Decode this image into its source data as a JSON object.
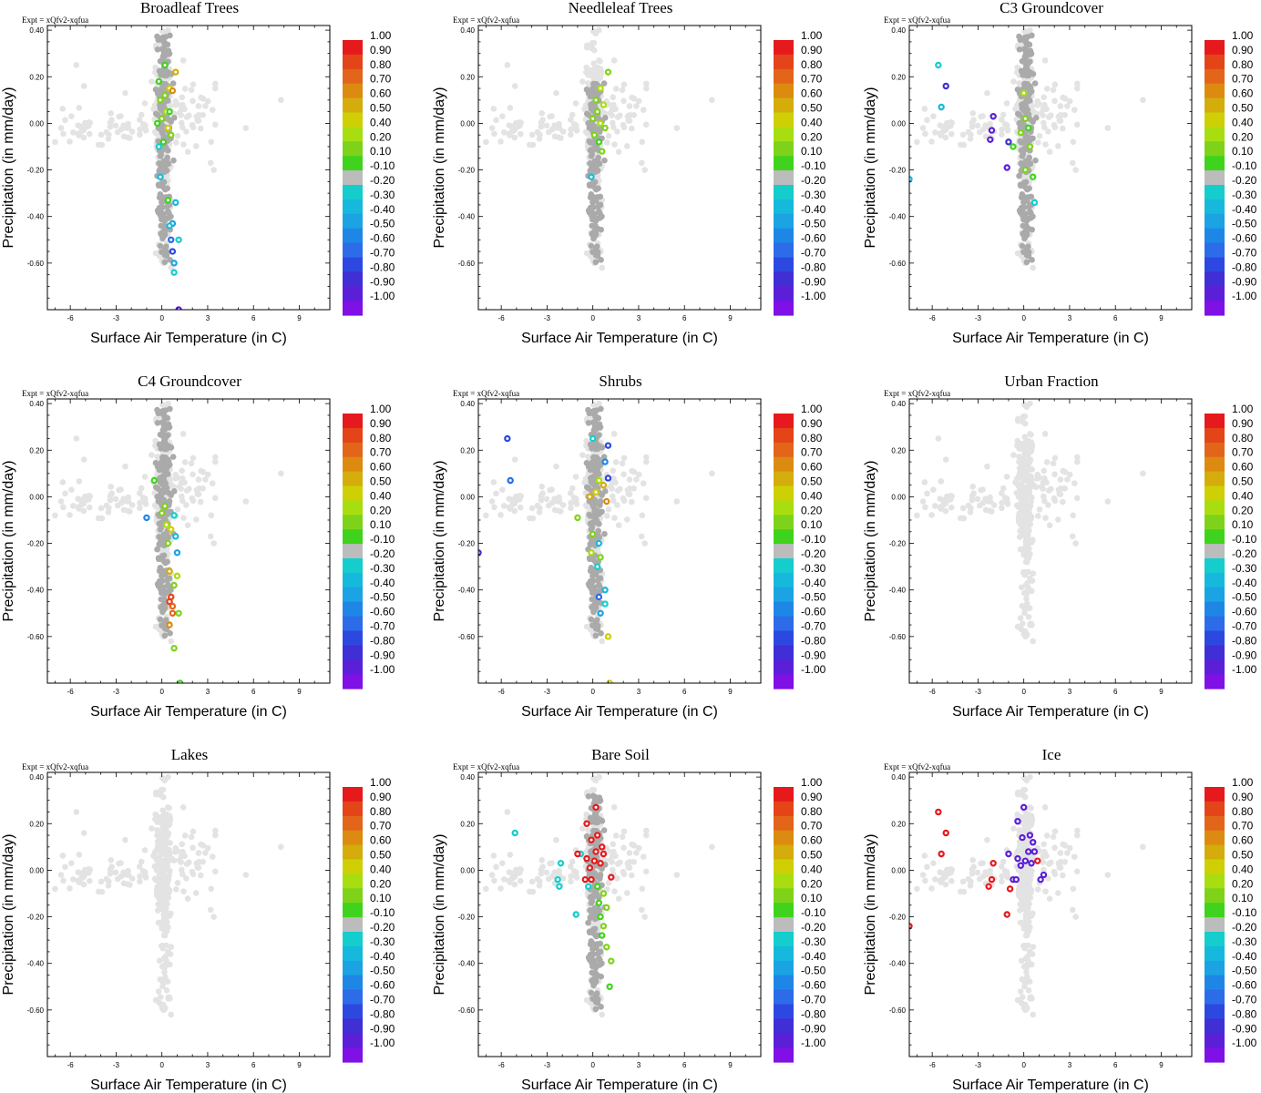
{
  "figure": {
    "expt_label": "Expt = xQfv2-xqfua",
    "xlabel": "Surface Air Temperature (in C)",
    "ylabel": "Precipitation (in mm/day)"
  },
  "chart_data": [
    {
      "type": "scatter",
      "title": "Broadleaf Trees",
      "xlim": [
        -7.5,
        11
      ],
      "ylim": [
        -0.8,
        0.42
      ],
      "xticks": [
        "-6",
        "-3",
        "0",
        "3",
        "6",
        "9"
      ],
      "yticks": [
        "0.40",
        "0.20",
        "0.00",
        "-0.20",
        "-0.40",
        "-0.60"
      ],
      "highlight": [
        [
          0.2,
          0.25,
          0.1
        ],
        [
          -0.2,
          0.18,
          0.1
        ],
        [
          0.5,
          0.15,
          0.5
        ],
        [
          0.9,
          0.22,
          0.6
        ],
        [
          0.7,
          0.14,
          0.7
        ],
        [
          -0.1,
          0.1,
          0.2
        ],
        [
          0.3,
          0.05,
          0.4
        ],
        [
          0.0,
          0.02,
          0.3
        ],
        [
          -0.3,
          0.0,
          0.1
        ],
        [
          0.4,
          -0.02,
          0.5
        ],
        [
          0.6,
          -0.05,
          0.2
        ],
        [
          0.1,
          -0.08,
          0.1
        ],
        [
          -0.2,
          -0.1,
          -0.2
        ],
        [
          0.5,
          0.05,
          0.1
        ],
        [
          0.2,
          0.12,
          0.3
        ],
        [
          -0.1,
          -0.23,
          -0.3
        ],
        [
          0.4,
          -0.33,
          0.1
        ],
        [
          0.9,
          -0.34,
          -0.3
        ],
        [
          0.7,
          -0.43,
          -0.4
        ],
        [
          0.5,
          -0.44,
          -0.3
        ],
        [
          0.6,
          -0.5,
          -0.6
        ],
        [
          1.1,
          -0.5,
          -0.2
        ],
        [
          0.7,
          -0.55,
          -0.7
        ],
        [
          0.8,
          -0.6,
          -0.4
        ],
        [
          0.8,
          -0.64,
          -0.2
        ],
        [
          1.1,
          -0.8,
          -0.9
        ]
      ],
      "colorbar": [
        "1.00",
        "0.90",
        "0.80",
        "0.70",
        "0.60",
        "0.50",
        "0.40",
        "0.20",
        "0.10",
        "-0.10",
        "-0.20",
        "-0.30",
        "-0.40",
        "-0.50",
        "-0.60",
        "-0.70",
        "-0.80",
        "-0.90",
        "-1.00"
      ]
    },
    {
      "type": "scatter",
      "title": "Needleleaf Trees",
      "xlim": [
        -7.5,
        11
      ],
      "ylim": [
        -0.8,
        0.42
      ],
      "xticks": [
        "-6",
        "-3",
        "0",
        "3",
        "6",
        "9"
      ],
      "yticks": [
        "0.40",
        "0.20",
        "0.00",
        "-0.20",
        "-0.40",
        "-0.60"
      ],
      "highlight": [
        [
          1.0,
          0.22,
          0.3
        ],
        [
          0.5,
          0.15,
          0.4
        ],
        [
          0.2,
          0.1,
          0.2
        ],
        [
          0.7,
          0.08,
          0.4
        ],
        [
          0.3,
          0.05,
          0.3
        ],
        [
          0.0,
          0.02,
          0.2
        ],
        [
          0.5,
          0.0,
          0.4
        ],
        [
          0.8,
          -0.02,
          0.3
        ],
        [
          0.1,
          -0.05,
          0.2
        ],
        [
          0.4,
          -0.08,
          0.1
        ],
        [
          0.6,
          -0.12,
          0.2
        ],
        [
          -0.1,
          -0.23,
          -0.3
        ]
      ],
      "colorbar": [
        "1.00",
        "0.90",
        "0.80",
        "0.70",
        "0.60",
        "0.50",
        "0.40",
        "0.20",
        "0.10",
        "-0.10",
        "-0.20",
        "-0.30",
        "-0.40",
        "-0.50",
        "-0.60",
        "-0.70",
        "-0.80",
        "-0.90",
        "-1.00"
      ]
    },
    {
      "type": "scatter",
      "title": "C3 Groundcover",
      "xlim": [
        -7.5,
        11
      ],
      "ylim": [
        -0.8,
        0.42
      ],
      "xticks": [
        "-6",
        "-3",
        "0",
        "3",
        "6",
        "9"
      ],
      "yticks": [
        "0.40",
        "0.20",
        "0.00",
        "-0.20",
        "-0.40",
        "-0.60"
      ],
      "highlight": [
        [
          -5.6,
          0.25,
          -0.2
        ],
        [
          -5.1,
          0.16,
          -0.8
        ],
        [
          -5.4,
          0.07,
          -0.3
        ],
        [
          -2.0,
          0.03,
          -0.9
        ],
        [
          -2.1,
          -0.03,
          -0.9
        ],
        [
          -2.2,
          -0.07,
          -0.9
        ],
        [
          -1.0,
          -0.08,
          -0.8
        ],
        [
          -0.7,
          -0.1,
          0.1
        ],
        [
          -1.1,
          -0.19,
          -0.9
        ],
        [
          -7.5,
          -0.24,
          -0.3
        ],
        [
          0.0,
          0.13,
          0.4
        ],
        [
          0.1,
          0.02,
          0.2
        ],
        [
          0.3,
          -0.02,
          0.1
        ],
        [
          -0.2,
          -0.04,
          0.3
        ],
        [
          0.4,
          -0.1,
          0.2
        ],
        [
          0.1,
          -0.2,
          0.3
        ],
        [
          0.6,
          -0.23,
          0.1
        ],
        [
          0.7,
          -0.34,
          -0.2
        ]
      ],
      "colorbar": [
        "1.00",
        "0.90",
        "0.80",
        "0.70",
        "0.60",
        "0.50",
        "0.40",
        "0.20",
        "0.10",
        "-0.10",
        "-0.20",
        "-0.30",
        "-0.40",
        "-0.50",
        "-0.60",
        "-0.70",
        "-0.80",
        "-0.90",
        "-1.00"
      ]
    },
    {
      "type": "scatter",
      "title": "C4 Groundcover",
      "xlim": [
        -7.5,
        11
      ],
      "ylim": [
        -0.8,
        0.42
      ],
      "xticks": [
        "-6",
        "-3",
        "0",
        "3",
        "6",
        "9"
      ],
      "yticks": [
        "0.40",
        "0.20",
        "0.00",
        "-0.20",
        "-0.40",
        "-0.60"
      ],
      "highlight": [
        [
          -0.5,
          0.07,
          0.1
        ],
        [
          0.2,
          -0.04,
          0.2
        ],
        [
          0.0,
          -0.07,
          0.3
        ],
        [
          -1.0,
          -0.09,
          -0.5
        ],
        [
          0.8,
          -0.08,
          -0.2
        ],
        [
          0.3,
          -0.12,
          0.4
        ],
        [
          0.6,
          -0.14,
          0.5
        ],
        [
          0.9,
          -0.17,
          -0.3
        ],
        [
          0.4,
          -0.2,
          0.2
        ],
        [
          1.0,
          -0.24,
          -0.4
        ],
        [
          0.5,
          -0.32,
          0.6
        ],
        [
          1.0,
          -0.34,
          0.4
        ],
        [
          0.8,
          -0.38,
          0.2
        ],
        [
          0.6,
          -0.43,
          0.9
        ],
        [
          0.5,
          -0.45,
          0.9
        ],
        [
          0.7,
          -0.47,
          0.8
        ],
        [
          1.1,
          -0.5,
          0.3
        ],
        [
          0.7,
          -0.5,
          0.8
        ],
        [
          0.5,
          -0.55,
          0.7
        ],
        [
          0.8,
          -0.65,
          0.3
        ],
        [
          1.2,
          -0.8,
          0.1
        ]
      ],
      "colorbar": [
        "1.00",
        "0.90",
        "0.80",
        "0.70",
        "0.60",
        "0.50",
        "0.40",
        "0.20",
        "0.10",
        "-0.10",
        "-0.20",
        "-0.30",
        "-0.40",
        "-0.50",
        "-0.60",
        "-0.70",
        "-0.80",
        "-0.90",
        "-1.00"
      ]
    },
    {
      "type": "scatter",
      "title": "Shrubs",
      "xlim": [
        -7.5,
        11
      ],
      "ylim": [
        -0.8,
        0.42
      ],
      "xticks": [
        "-6",
        "-3",
        "0",
        "3",
        "6",
        "9"
      ],
      "yticks": [
        "0.40",
        "0.20",
        "0.00",
        "-0.20",
        "-0.40",
        "-0.60"
      ],
      "highlight": [
        [
          -5.6,
          0.25,
          -0.7
        ],
        [
          -5.4,
          0.07,
          -0.6
        ],
        [
          -7.5,
          -0.24,
          -0.8
        ],
        [
          1.0,
          0.22,
          -0.7
        ],
        [
          0.0,
          0.25,
          -0.2
        ],
        [
          0.8,
          0.15,
          -0.5
        ],
        [
          1.0,
          0.08,
          -0.7
        ],
        [
          0.4,
          0.07,
          0.4
        ],
        [
          0.7,
          0.05,
          0.6
        ],
        [
          0.2,
          0.02,
          0.5
        ],
        [
          0.9,
          -0.02,
          0.7
        ],
        [
          -0.2,
          0.0,
          0.6
        ],
        [
          -1.0,
          -0.09,
          0.3
        ],
        [
          0.0,
          -0.16,
          0.2
        ],
        [
          0.4,
          -0.2,
          -0.3
        ],
        [
          -0.1,
          -0.24,
          0.4
        ],
        [
          0.5,
          -0.26,
          0.3
        ],
        [
          0.3,
          -0.3,
          -0.2
        ],
        [
          0.8,
          -0.4,
          -0.3
        ],
        [
          0.4,
          -0.43,
          -0.6
        ],
        [
          0.8,
          -0.46,
          -0.2
        ],
        [
          0.5,
          -0.5,
          -0.4
        ],
        [
          1.0,
          -0.6,
          0.5
        ],
        [
          1.1,
          -0.8,
          0.5
        ]
      ],
      "colorbar": [
        "1.00",
        "0.90",
        "0.80",
        "0.70",
        "0.60",
        "0.50",
        "0.40",
        "0.20",
        "0.10",
        "-0.10",
        "-0.20",
        "-0.30",
        "-0.40",
        "-0.50",
        "-0.60",
        "-0.70",
        "-0.80",
        "-0.90",
        "-1.00"
      ]
    },
    {
      "type": "scatter",
      "title": "Urban Fraction",
      "xlim": [
        -7.5,
        11
      ],
      "ylim": [
        -0.8,
        0.42
      ],
      "xticks": [
        "-6",
        "-3",
        "0",
        "3",
        "6",
        "9"
      ],
      "yticks": [
        "0.40",
        "0.20",
        "0.00",
        "-0.20",
        "-0.40",
        "-0.60"
      ],
      "highlight": [],
      "colorbar": [
        "1.00",
        "0.90",
        "0.80",
        "0.70",
        "0.60",
        "0.50",
        "0.40",
        "0.20",
        "0.10",
        "-0.10",
        "-0.20",
        "-0.30",
        "-0.40",
        "-0.50",
        "-0.60",
        "-0.70",
        "-0.80",
        "-0.90",
        "-1.00"
      ]
    },
    {
      "type": "scatter",
      "title": "Lakes",
      "xlim": [
        -7.5,
        11
      ],
      "ylim": [
        -0.8,
        0.42
      ],
      "xticks": [
        "-6",
        "-3",
        "0",
        "3",
        "6",
        "9"
      ],
      "yticks": [
        "0.40",
        "0.20",
        "0.00",
        "-0.20",
        "-0.40",
        "-0.60"
      ],
      "highlight": [],
      "colorbar": [
        "1.00",
        "0.90",
        "0.80",
        "0.70",
        "0.60",
        "0.50",
        "0.40",
        "0.20",
        "0.10",
        "-0.10",
        "-0.20",
        "-0.30",
        "-0.40",
        "-0.50",
        "-0.60",
        "-0.70",
        "-0.80",
        "-0.90",
        "-1.00"
      ]
    },
    {
      "type": "scatter",
      "title": "Bare Soil",
      "xlim": [
        -7.5,
        11
      ],
      "ylim": [
        -0.8,
        0.42
      ],
      "xticks": [
        "-6",
        "-3",
        "0",
        "3",
        "6",
        "9"
      ],
      "yticks": [
        "0.40",
        "0.20",
        "0.00",
        "-0.20",
        "-0.40",
        "-0.60"
      ],
      "highlight": [
        [
          -5.1,
          0.16,
          -0.2
        ],
        [
          -2.1,
          0.03,
          -0.2
        ],
        [
          -2.3,
          -0.04,
          -0.2
        ],
        [
          -2.2,
          -0.07,
          -0.2
        ],
        [
          -1.1,
          -0.19,
          -0.2
        ],
        [
          -0.8,
          0.07,
          -0.2
        ],
        [
          -0.3,
          -0.07,
          -0.2
        ],
        [
          0.2,
          0.27,
          1.0
        ],
        [
          -0.4,
          0.2,
          1.0
        ],
        [
          0.3,
          0.15,
          1.0
        ],
        [
          -0.1,
          0.13,
          1.0
        ],
        [
          0.6,
          0.1,
          1.0
        ],
        [
          0.2,
          0.08,
          1.0
        ],
        [
          -1.0,
          0.07,
          1.0
        ],
        [
          0.7,
          0.07,
          1.0
        ],
        [
          -0.4,
          0.05,
          1.0
        ],
        [
          0.1,
          0.04,
          1.0
        ],
        [
          0.5,
          0.03,
          1.0
        ],
        [
          -0.2,
          0.01,
          1.0
        ],
        [
          -0.5,
          -0.04,
          1.0
        ],
        [
          -0.1,
          -0.04,
          1.0
        ],
        [
          1.2,
          -0.03,
          1.0
        ],
        [
          0.3,
          -0.07,
          0.1
        ],
        [
          0.7,
          -0.1,
          0.2
        ],
        [
          0.4,
          -0.14,
          0.1
        ],
        [
          0.9,
          -0.16,
          0.3
        ],
        [
          0.5,
          -0.2,
          0.1
        ],
        [
          0.7,
          -0.24,
          0.2
        ],
        [
          0.6,
          -0.28,
          0.1
        ],
        [
          0.9,
          -0.33,
          0.2
        ],
        [
          1.2,
          -0.39,
          0.3
        ],
        [
          1.1,
          -0.5,
          0.1
        ]
      ],
      "colorbar": [
        "1.00",
        "0.90",
        "0.80",
        "0.70",
        "0.60",
        "0.50",
        "0.40",
        "0.20",
        "0.10",
        "-0.10",
        "-0.20",
        "-0.30",
        "-0.40",
        "-0.50",
        "-0.60",
        "-0.70",
        "-0.80",
        "-0.90",
        "-1.00"
      ]
    },
    {
      "type": "scatter",
      "title": "Ice",
      "xlim": [
        -7.5,
        11
      ],
      "ylim": [
        -0.8,
        0.42
      ],
      "xticks": [
        "-6",
        "-3",
        "0",
        "3",
        "6",
        "9"
      ],
      "yticks": [
        "0.40",
        "0.20",
        "0.00",
        "-0.20",
        "-0.40",
        "-0.60"
      ],
      "highlight": [
        [
          -5.6,
          0.25,
          1.0
        ],
        [
          -5.1,
          0.16,
          1.0
        ],
        [
          -5.4,
          0.07,
          1.0
        ],
        [
          -2.0,
          0.03,
          1.0
        ],
        [
          -2.1,
          -0.04,
          1.0
        ],
        [
          -2.3,
          -0.07,
          1.0
        ],
        [
          -0.9,
          -0.08,
          1.0
        ],
        [
          -1.1,
          -0.19,
          1.0
        ],
        [
          -7.5,
          -0.24,
          1.0
        ],
        [
          0.9,
          0.04,
          1.0
        ],
        [
          0.0,
          0.27,
          -0.9
        ],
        [
          -0.4,
          0.21,
          -0.9
        ],
        [
          0.4,
          0.15,
          -0.9
        ],
        [
          -0.1,
          0.14,
          -0.9
        ],
        [
          0.6,
          0.12,
          -0.9
        ],
        [
          0.3,
          0.08,
          -0.9
        ],
        [
          -1.0,
          0.07,
          -0.9
        ],
        [
          0.7,
          0.08,
          -0.9
        ],
        [
          -0.4,
          0.05,
          -0.9
        ],
        [
          0.1,
          0.04,
          -0.9
        ],
        [
          0.5,
          0.03,
          -0.9
        ],
        [
          -0.2,
          0.02,
          -0.9
        ],
        [
          -0.7,
          -0.04,
          -0.9
        ],
        [
          -0.5,
          -0.04,
          -0.9
        ],
        [
          1.3,
          -0.02,
          -0.9
        ],
        [
          1.1,
          -0.04,
          -0.9
        ]
      ],
      "colorbar": [
        "1.00",
        "0.90",
        "0.80",
        "0.70",
        "0.60",
        "0.50",
        "0.40",
        "0.20",
        "0.10",
        "-0.10",
        "-0.20",
        "-0.30",
        "-0.40",
        "-0.50",
        "-0.60",
        "-0.70",
        "-0.80",
        "-0.90",
        "-1.00"
      ]
    }
  ],
  "colorbar_colors": [
    "#e6191c",
    "#e34418",
    "#e2651a",
    "#dc8b10",
    "#d4ad0c",
    "#cfcf05",
    "#a8de0f",
    "#7ed31a",
    "#40d31d",
    "#bcbcbc",
    "#15cdcd",
    "#16b9dc",
    "#1ba3e3",
    "#1e87e6",
    "#2c6ce9",
    "#2d48e0",
    "#3f2fd4",
    "#5c1fd8",
    "#7f10e6"
  ],
  "background_cloud_color": "#e3e3e3",
  "dark_cloud_color": "#aaaaaa"
}
